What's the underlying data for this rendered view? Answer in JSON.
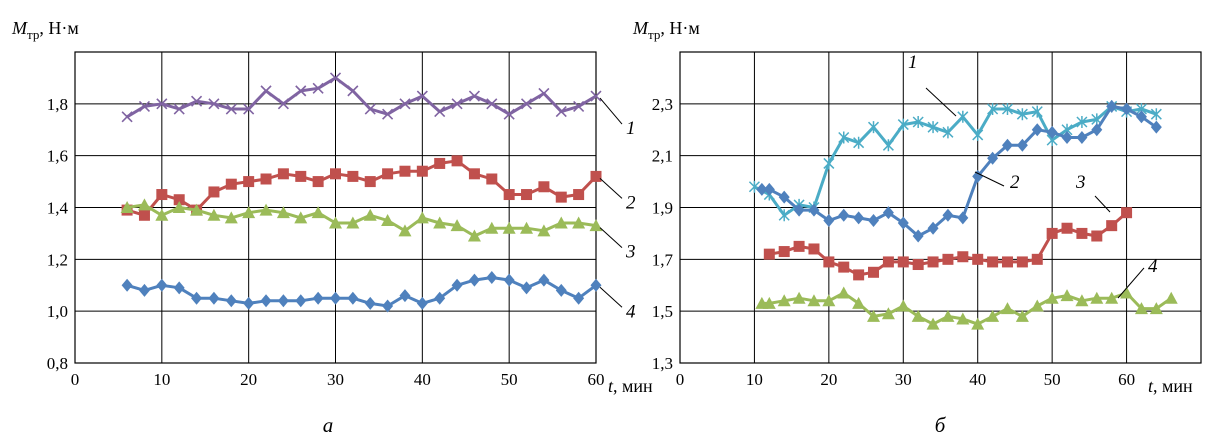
{
  "chart_data": [
    {
      "type": "line",
      "caption": "а",
      "ylabel": "M",
      "ylabel_sub": "тр",
      "ylabel_unit": ", Н·м",
      "xlabel": "t",
      "xlabel_unit": ", мин",
      "xlim": [
        0,
        60
      ],
      "ylim": [
        0.8,
        2.0
      ],
      "xticks": [
        0,
        10,
        20,
        30,
        40,
        50,
        60
      ],
      "xtick_labels": [
        "0",
        "10",
        "20",
        "30",
        "40",
        "50",
        "60"
      ],
      "yticks": [
        0.8,
        1.0,
        1.2,
        1.4,
        1.6,
        1.8
      ],
      "ytick_labels": [
        "0,8",
        "1,0",
        "1,2",
        "1,4",
        "1,6",
        "1,8"
      ],
      "grid": true,
      "series": [
        {
          "label": "1",
          "marker": "x",
          "color": "#8064a2",
          "x": [
            6,
            8,
            10,
            12,
            14,
            16,
            18,
            20,
            22,
            24,
            26,
            28,
            30,
            32,
            34,
            36,
            38,
            40,
            42,
            44,
            46,
            48,
            50,
            52,
            54,
            56,
            58,
            60
          ],
          "y": [
            1.75,
            1.79,
            1.8,
            1.78,
            1.81,
            1.8,
            1.78,
            1.78,
            1.85,
            1.8,
            1.85,
            1.86,
            1.9,
            1.85,
            1.78,
            1.76,
            1.8,
            1.83,
            1.77,
            1.8,
            1.83,
            1.8,
            1.76,
            1.8,
            1.84,
            1.77,
            1.79,
            1.83
          ]
        },
        {
          "label": "2",
          "marker": "square",
          "color": "#c0504d",
          "x": [
            6,
            8,
            10,
            12,
            14,
            16,
            18,
            20,
            22,
            24,
            26,
            28,
            30,
            32,
            34,
            36,
            38,
            40,
            42,
            44,
            46,
            48,
            50,
            52,
            54,
            56,
            58,
            60
          ],
          "y": [
            1.39,
            1.37,
            1.45,
            1.43,
            1.39,
            1.46,
            1.49,
            1.5,
            1.51,
            1.53,
            1.52,
            1.5,
            1.53,
            1.52,
            1.5,
            1.53,
            1.54,
            1.54,
            1.57,
            1.58,
            1.53,
            1.51,
            1.45,
            1.45,
            1.48,
            1.44,
            1.45,
            1.52
          ]
        },
        {
          "label": "3",
          "marker": "triangle",
          "color": "#9bbb59",
          "x": [
            6,
            8,
            10,
            12,
            14,
            16,
            18,
            20,
            22,
            24,
            26,
            28,
            30,
            32,
            34,
            36,
            38,
            40,
            42,
            44,
            46,
            48,
            50,
            52,
            54,
            56,
            58,
            60
          ],
          "y": [
            1.4,
            1.41,
            1.37,
            1.4,
            1.39,
            1.37,
            1.36,
            1.38,
            1.39,
            1.38,
            1.36,
            1.38,
            1.34,
            1.34,
            1.37,
            1.35,
            1.31,
            1.36,
            1.34,
            1.33,
            1.29,
            1.32,
            1.32,
            1.32,
            1.31,
            1.34,
            1.34,
            1.33
          ]
        },
        {
          "label": "4",
          "marker": "diamond",
          "color": "#4f81bd",
          "x": [
            6,
            8,
            10,
            12,
            14,
            16,
            18,
            20,
            22,
            24,
            26,
            28,
            30,
            32,
            34,
            36,
            38,
            40,
            42,
            44,
            46,
            48,
            50,
            52,
            54,
            56,
            58,
            60
          ],
          "y": [
            1.1,
            1.08,
            1.1,
            1.09,
            1.05,
            1.05,
            1.04,
            1.03,
            1.04,
            1.04,
            1.04,
            1.05,
            1.05,
            1.05,
            1.03,
            1.02,
            1.06,
            1.03,
            1.05,
            1.1,
            1.12,
            1.13,
            1.12,
            1.09,
            1.12,
            1.08,
            1.05,
            1.1
          ]
        }
      ]
    },
    {
      "type": "line",
      "caption": "б",
      "ylabel": "M",
      "ylabel_sub": "тр",
      "ylabel_unit": ", Н·м",
      "xlabel": "t",
      "xlabel_unit": ", мин",
      "xlim": [
        0,
        70
      ],
      "ylim": [
        1.3,
        2.5
      ],
      "xticks": [
        0,
        10,
        20,
        30,
        40,
        50,
        60
      ],
      "xtick_labels": [
        "0",
        "10",
        "20",
        "30",
        "40",
        "50",
        "60"
      ],
      "yticks": [
        1.3,
        1.5,
        1.7,
        1.9,
        2.1,
        2.3
      ],
      "ytick_labels": [
        "1,3",
        "1,5",
        "1,7",
        "1,9",
        "2,1",
        "2,3"
      ],
      "grid": true,
      "series": [
        {
          "label": "1",
          "marker": "star",
          "color": "#4bacc6",
          "x": [
            10,
            12,
            14,
            16,
            18,
            20,
            22,
            24,
            26,
            28,
            30,
            32,
            34,
            36,
            38,
            40,
            42,
            44,
            46,
            48,
            50,
            52,
            54,
            56,
            58,
            60,
            62,
            64
          ],
          "y": [
            1.98,
            1.95,
            1.87,
            1.91,
            1.9,
            2.07,
            2.17,
            2.15,
            2.21,
            2.14,
            2.22,
            2.23,
            2.21,
            2.19,
            2.25,
            2.18,
            2.28,
            2.28,
            2.26,
            2.27,
            2.16,
            2.2,
            2.23,
            2.24,
            2.29,
            2.27,
            2.28,
            2.26
          ]
        },
        {
          "label": "2",
          "marker": "diamond",
          "color": "#4f81bd",
          "x": [
            11,
            12,
            14,
            16,
            18,
            20,
            22,
            24,
            26,
            28,
            30,
            32,
            34,
            36,
            38,
            40,
            42,
            44,
            46,
            48,
            50,
            52,
            54,
            56,
            58,
            60,
            62,
            64
          ],
          "y": [
            1.97,
            1.97,
            1.94,
            1.89,
            1.89,
            1.85,
            1.87,
            1.86,
            1.85,
            1.88,
            1.84,
            1.79,
            1.82,
            1.87,
            1.86,
            2.02,
            2.09,
            2.14,
            2.14,
            2.2,
            2.19,
            2.17,
            2.17,
            2.2,
            2.29,
            2.28,
            2.25,
            2.21
          ]
        },
        {
          "label": "3",
          "marker": "square",
          "color": "#c0504d",
          "x": [
            12,
            14,
            16,
            18,
            20,
            22,
            24,
            26,
            28,
            30,
            32,
            34,
            36,
            38,
            40,
            42,
            44,
            46,
            48,
            50,
            52,
            54,
            56,
            58,
            60
          ],
          "y": [
            1.72,
            1.73,
            1.75,
            1.74,
            1.69,
            1.67,
            1.64,
            1.65,
            1.69,
            1.69,
            1.68,
            1.69,
            1.7,
            1.71,
            1.7,
            1.69,
            1.69,
            1.69,
            1.7,
            1.8,
            1.82,
            1.8,
            1.79,
            1.83,
            1.88
          ]
        },
        {
          "label": "4",
          "marker": "triangle",
          "color": "#9bbb59",
          "x": [
            11,
            12,
            14,
            16,
            18,
            20,
            22,
            24,
            26,
            28,
            30,
            32,
            34,
            36,
            38,
            40,
            42,
            44,
            46,
            48,
            50,
            52,
            54,
            56,
            58,
            60,
            62,
            64,
            66
          ],
          "y": [
            1.53,
            1.53,
            1.54,
            1.55,
            1.54,
            1.54,
            1.57,
            1.53,
            1.48,
            1.49,
            1.52,
            1.48,
            1.45,
            1.48,
            1.47,
            1.45,
            1.48,
            1.51,
            1.48,
            1.52,
            1.55,
            1.56,
            1.54,
            1.55,
            1.55,
            1.57,
            1.51,
            1.51,
            1.55
          ]
        }
      ]
    }
  ]
}
